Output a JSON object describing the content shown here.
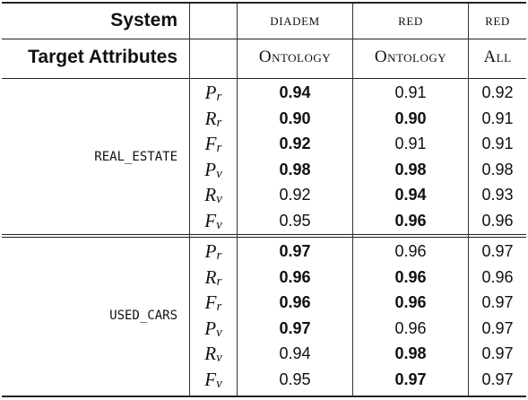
{
  "header": {
    "row1": {
      "label": "System",
      "cols": [
        "DIADEM",
        "RED",
        "RED"
      ]
    },
    "row2": {
      "label": "Target Attributes",
      "cols": [
        "Ontology",
        "Ontology",
        "All"
      ]
    }
  },
  "metrics": [
    {
      "base": "P",
      "sub": "r"
    },
    {
      "base": "R",
      "sub": "r"
    },
    {
      "base": "F",
      "sub": "r"
    },
    {
      "base": "P",
      "sub": "v"
    },
    {
      "base": "R",
      "sub": "v"
    },
    {
      "base": "F",
      "sub": "v"
    }
  ],
  "groups": [
    {
      "name": "REAL_ESTATE",
      "rows": [
        {
          "values": [
            "0.94",
            "0.91",
            "0.92"
          ],
          "bold": [
            true,
            false,
            false
          ]
        },
        {
          "values": [
            "0.90",
            "0.90",
            "0.91"
          ],
          "bold": [
            true,
            true,
            false
          ]
        },
        {
          "values": [
            "0.92",
            "0.91",
            "0.91"
          ],
          "bold": [
            true,
            false,
            false
          ]
        },
        {
          "values": [
            "0.98",
            "0.98",
            "0.98"
          ],
          "bold": [
            true,
            true,
            false
          ]
        },
        {
          "values": [
            "0.92",
            "0.94",
            "0.93"
          ],
          "bold": [
            false,
            true,
            false
          ]
        },
        {
          "values": [
            "0.95",
            "0.96",
            "0.96"
          ],
          "bold": [
            false,
            true,
            false
          ]
        }
      ]
    },
    {
      "name": "USED_CARS",
      "rows": [
        {
          "values": [
            "0.97",
            "0.96",
            "0.97"
          ],
          "bold": [
            true,
            false,
            false
          ]
        },
        {
          "values": [
            "0.96",
            "0.96",
            "0.96"
          ],
          "bold": [
            true,
            true,
            false
          ]
        },
        {
          "values": [
            "0.96",
            "0.96",
            "0.97"
          ],
          "bold": [
            true,
            true,
            false
          ]
        },
        {
          "values": [
            "0.97",
            "0.96",
            "0.97"
          ],
          "bold": [
            true,
            false,
            false
          ]
        },
        {
          "values": [
            "0.94",
            "0.98",
            "0.97"
          ],
          "bold": [
            false,
            true,
            false
          ]
        },
        {
          "values": [
            "0.95",
            "0.97",
            "0.97"
          ],
          "bold": [
            false,
            true,
            false
          ]
        }
      ]
    }
  ]
}
